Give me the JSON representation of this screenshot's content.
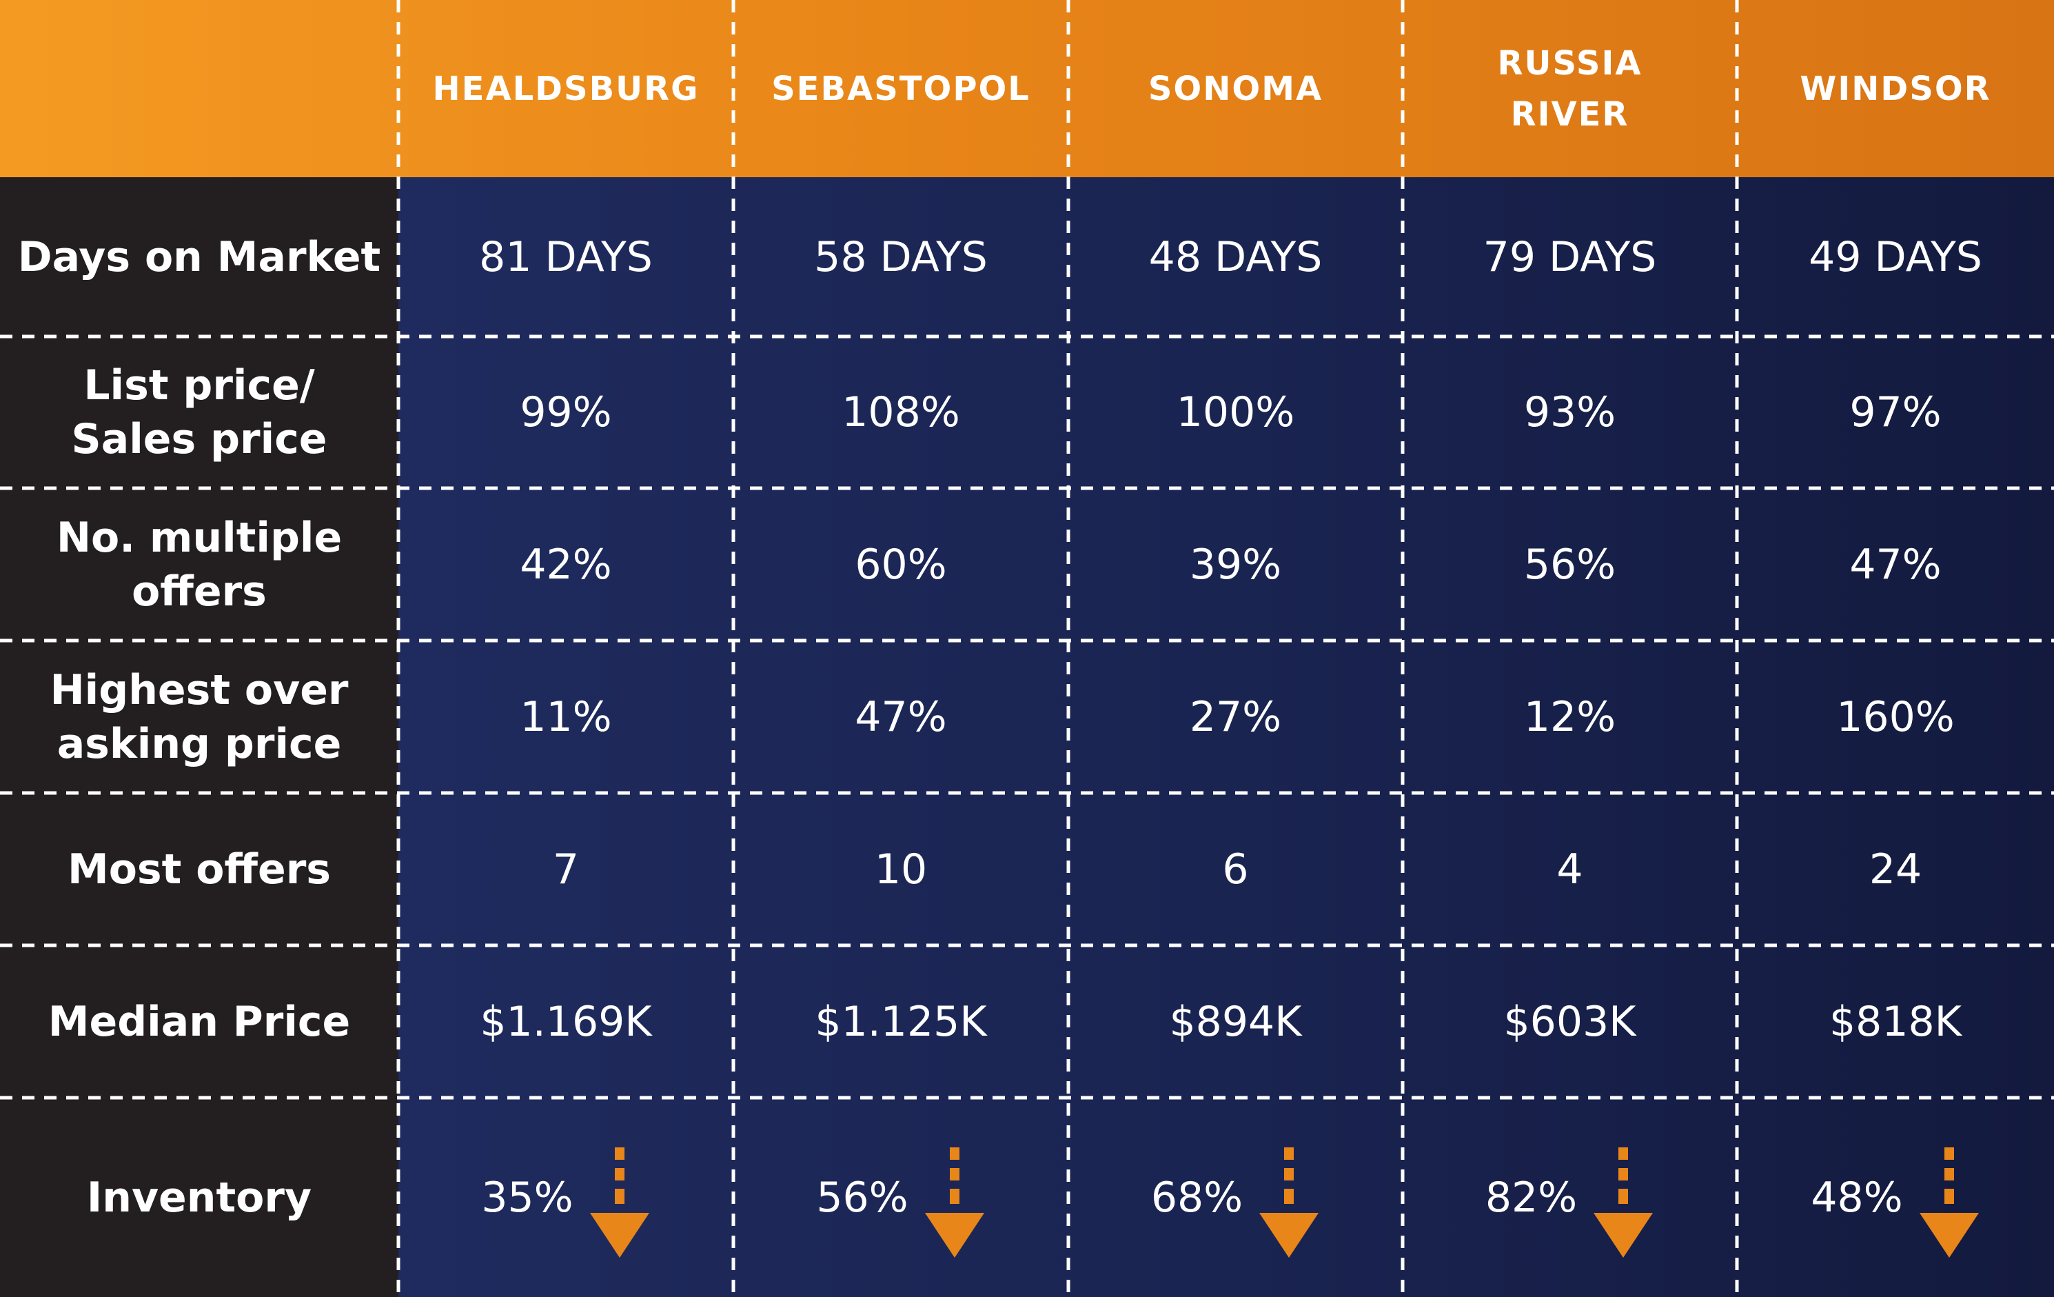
{
  "chart_data": {
    "type": "table",
    "columns": [
      "HEALDSBURG",
      "SEBASTOPOL",
      "SONOMA",
      "RUSSIA\nRIVER",
      "WINDSOR"
    ],
    "rows": [
      {
        "label": "Days on Market",
        "values": [
          "81 DAYS",
          "58 DAYS",
          "48 DAYS",
          "79 DAYS",
          "49 DAYS"
        ]
      },
      {
        "label": "List price/\nSales price",
        "values": [
          "99%",
          "108%",
          "100%",
          "93%",
          "97%"
        ]
      },
      {
        "label": "No. multiple\noffers",
        "values": [
          "42%",
          "60%",
          "39%",
          "56%",
          "47%"
        ]
      },
      {
        "label": "Highest over\nasking price",
        "values": [
          "11%",
          "47%",
          "27%",
          "12%",
          "160%"
        ]
      },
      {
        "label": "Most offers",
        "values": [
          "7",
          "10",
          "6",
          "4",
          "24"
        ]
      },
      {
        "label": "Median Price",
        "values": [
          "$1.169K",
          "$1.125K",
          "$894K",
          "$603K",
          "$818K"
        ]
      },
      {
        "label": "Inventory",
        "values": [
          "35%",
          "56%",
          "68%",
          "82%",
          "48%"
        ],
        "trend_icon": "arrow-down-icon"
      }
    ],
    "colors": {
      "header_start": "#f49a22",
      "header_end": "#d87414",
      "label_column": "#231f20",
      "data_start": "#1f2b5e",
      "data_end": "#131a3e",
      "arrow": "#e8861a",
      "grid": "#ffffff"
    }
  }
}
